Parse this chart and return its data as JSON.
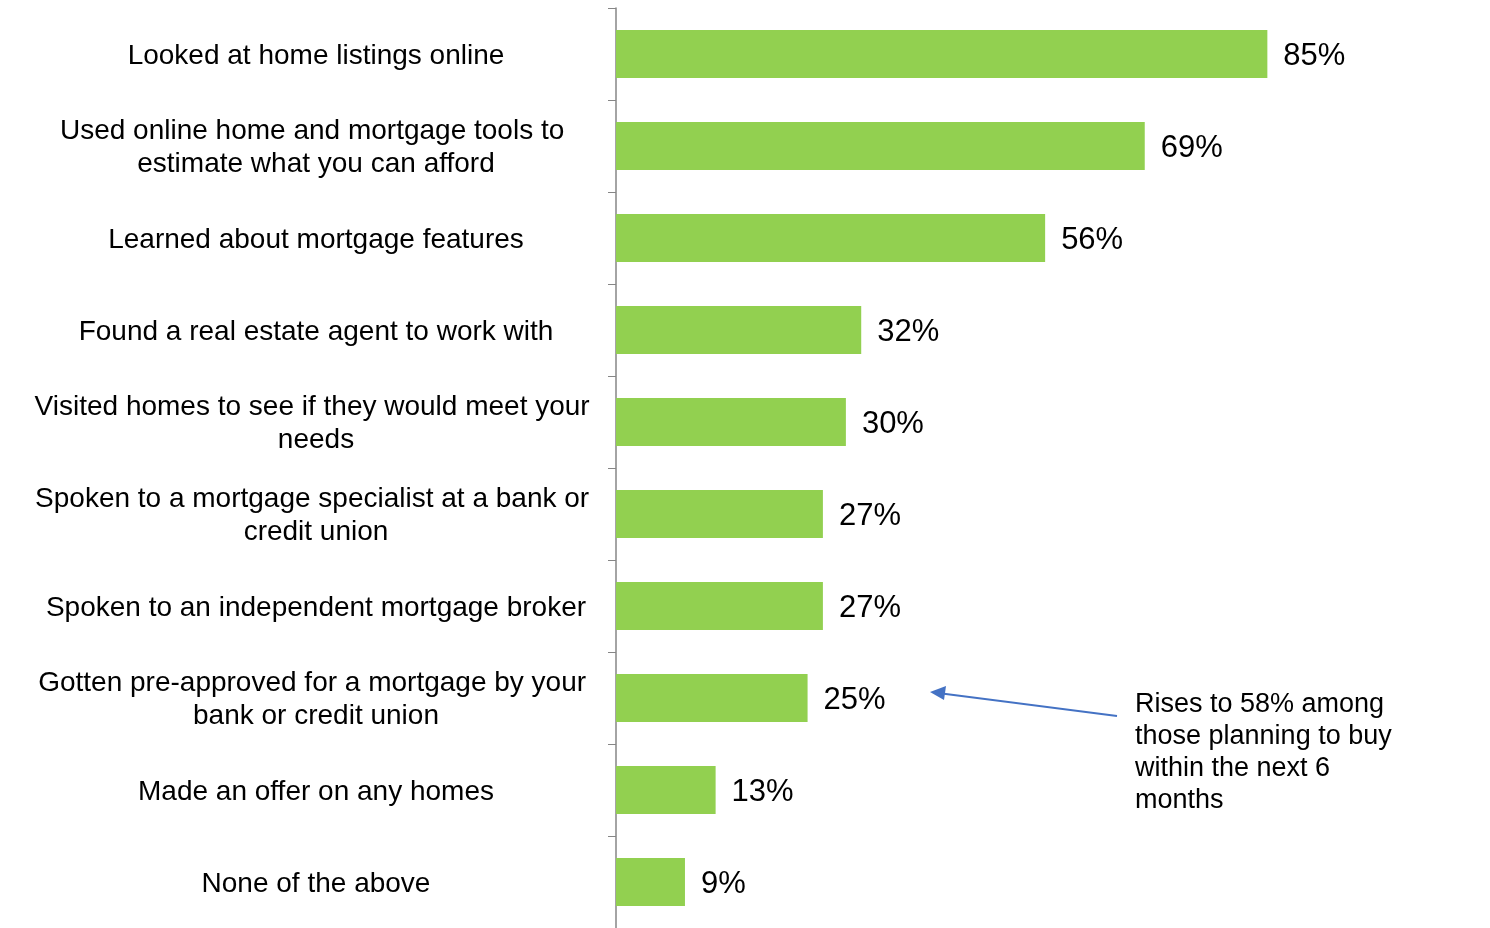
{
  "chart_data": {
    "type": "bar",
    "orientation": "horizontal",
    "categories": [
      "Looked at home listings online",
      "Used online home and mortgage tools to estimate what you can afford",
      "Learned about mortgage features",
      "Found a real estate agent to work with",
      "Visited homes to see if they would meet your needs",
      "Spoken to a mortgage specialist at a bank or credit union",
      "Spoken to an independent mortgage broker",
      "Gotten pre-approved for a mortgage by your bank or credit union",
      "Made an offer on any homes",
      "None of the above"
    ],
    "values": [
      85,
      69,
      56,
      32,
      30,
      27,
      27,
      25,
      13,
      9
    ],
    "value_labels": [
      "85%",
      "69%",
      "56%",
      "32%",
      "30%",
      "27%",
      "27%",
      "25%",
      "13%",
      "9%"
    ],
    "color": "#92d050",
    "tick_labels": "y",
    "annotations": [
      "Rises to 58% among those planning to buy within the next 6 months"
    ]
  }
}
